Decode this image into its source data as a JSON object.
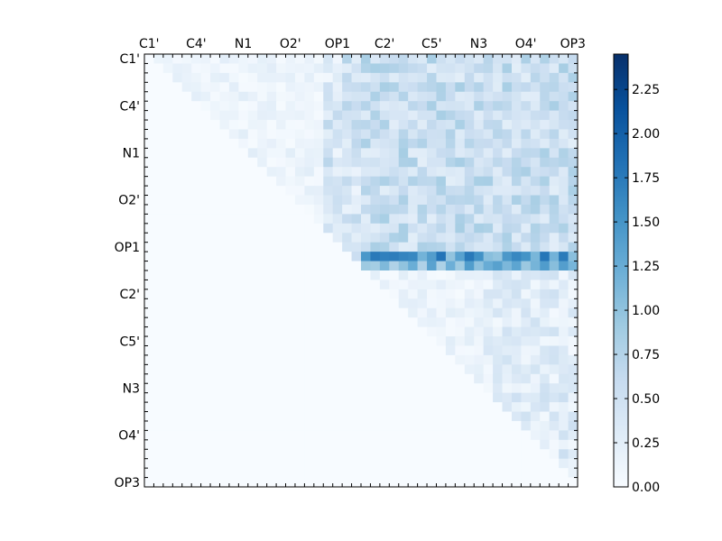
{
  "chart_data": {
    "type": "heatmap",
    "title": "",
    "grid": false,
    "legend": "colorbar-right",
    "colormap": "Blues",
    "x_tick_labels": [
      "C1'",
      "C4'",
      "N1",
      "O2'",
      "OP1",
      "C2'",
      "C5'",
      "N3",
      "O4'",
      "OP3"
    ],
    "y_tick_labels": [
      "C1'",
      "C4'",
      "N1",
      "O2'",
      "OP1",
      "C2'",
      "C5'",
      "N3",
      "O4'",
      "OP3"
    ],
    "value_range": [
      0,
      2.45
    ],
    "colorbar_ticks": [
      "0.00",
      "0.25",
      "0.50",
      "0.75",
      "1.00",
      "1.25",
      "1.50",
      "1.75",
      "2.00",
      "2.25"
    ],
    "matrix_size": 46,
    "block_boundaries": [
      23,
      36
    ],
    "blocks": [
      {
        "rows": [
          0,
          22
        ],
        "cols": [
          1,
          22
        ],
        "mean_value": 0.15
      },
      {
        "rows": [
          0,
          22
        ],
        "cols": [
          23,
          45
        ],
        "mean_value": 0.55
      },
      {
        "rows": [
          23,
          35
        ],
        "cols": [
          24,
          45
        ],
        "mean_value": 0.2
      },
      {
        "rows": [
          36,
          45
        ],
        "cols": [
          37,
          45
        ],
        "mean_value": 0.3
      }
    ],
    "hot_rows": [
      {
        "row": 21,
        "mean_value": 1.4,
        "max_value": 2.45
      },
      {
        "row": 22,
        "mean_value": 1.1
      }
    ]
  }
}
